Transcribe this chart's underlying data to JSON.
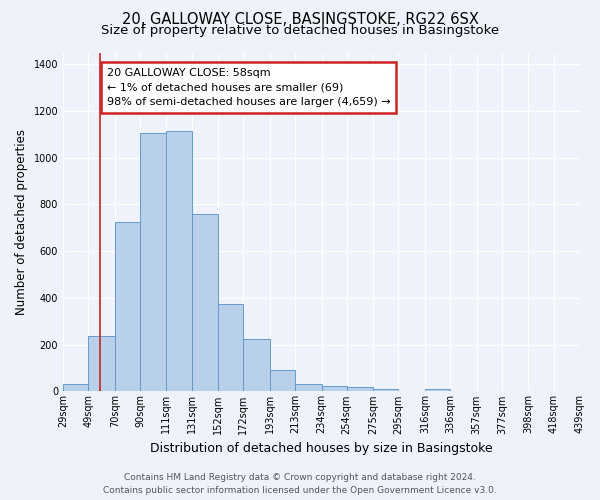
{
  "title": "20, GALLOWAY CLOSE, BASINGSTOKE, RG22 6SX",
  "subtitle": "Size of property relative to detached houses in Basingstoke",
  "xlabel": "Distribution of detached houses by size in Basingstoke",
  "ylabel": "Number of detached properties",
  "bin_labels": [
    "29sqm",
    "49sqm",
    "70sqm",
    "90sqm",
    "111sqm",
    "131sqm",
    "152sqm",
    "172sqm",
    "193sqm",
    "213sqm",
    "234sqm",
    "254sqm",
    "275sqm",
    "295sqm",
    "316sqm",
    "336sqm",
    "357sqm",
    "377sqm",
    "398sqm",
    "418sqm",
    "439sqm"
  ],
  "bar_values": [
    30,
    238,
    725,
    1105,
    1115,
    760,
    375,
    225,
    90,
    32,
    25,
    18,
    10,
    0,
    12,
    0,
    0,
    0,
    0,
    0
  ],
  "bar_color": "#b8d0ea",
  "bar_edge_color": "#6699cc",
  "ylim": [
    0,
    1450
  ],
  "yticks": [
    0,
    200,
    400,
    600,
    800,
    1000,
    1200,
    1400
  ],
  "property_line_x": 58,
  "property_line_label": "20 GALLOWAY CLOSE: 58sqm",
  "annotation_line1": "← 1% of detached houses are smaller (69)",
  "annotation_line2": "98% of semi-detached houses are larger (4,659) →",
  "footer_line1": "Contains HM Land Registry data © Crown copyright and database right 2024.",
  "footer_line2": "Contains public sector information licensed under the Open Government Licence v3.0.",
  "bg_color": "#eef2fa",
  "grid_color": "#ffffff",
  "title_fontsize": 10.5,
  "subtitle_fontsize": 9.5,
  "xlabel_fontsize": 9,
  "ylabel_fontsize": 8.5,
  "tick_fontsize": 7,
  "annot_fontsize": 8,
  "footer_fontsize": 6.5
}
